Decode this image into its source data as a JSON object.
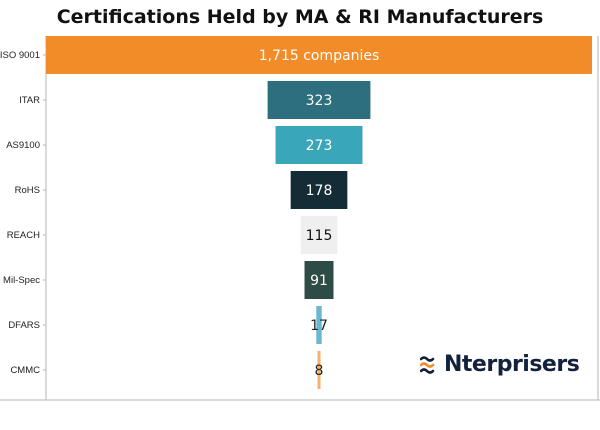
{
  "chart_data": {
    "type": "bar",
    "title": "Certifications Held by MA & RI Manufacturers",
    "xlabel": "",
    "ylabel": "",
    "categories": [
      "ISO 9001",
      "ITAR",
      "AS9100",
      "RoHS",
      "REACH",
      "Mil-Spec",
      "DFARS",
      "CMMC"
    ],
    "values": [
      1715,
      323,
      273,
      178,
      115,
      91,
      17,
      8
    ],
    "data_labels": [
      "1,715 companies",
      "323",
      "273",
      "178",
      "115",
      "91",
      "17",
      "8"
    ],
    "bar_colors": [
      "#f28c28",
      "#2d6f7e",
      "#3aa6b9",
      "#132c36",
      "#efefef",
      "#2f4b45",
      "#6ab7cf",
      "#f6b26b"
    ],
    "label_colors": [
      "#ffffff",
      "#ffffff",
      "#ffffff",
      "#ffffff",
      "#111111",
      "#ffffff",
      "#222222",
      "#222222"
    ],
    "orientation": "horizontal-centered",
    "grid": false,
    "legend": "none"
  },
  "branding": {
    "logo_text": "Nterprisers",
    "logo_color": "#14213d",
    "logo_accent": "#f28c28"
  }
}
